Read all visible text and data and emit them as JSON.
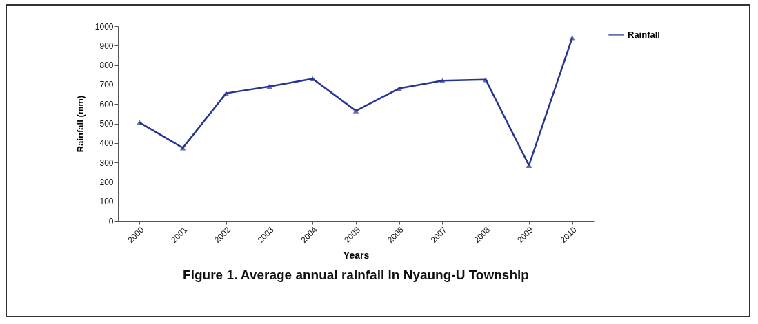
{
  "chart_data": {
    "type": "line",
    "title": "Figure 1. Average annual rainfall in Nyaung-U Township",
    "xlabel": "Years",
    "ylabel": "Rainfall (mm)",
    "categories": [
      "2000",
      "2001",
      "2002",
      "2003",
      "2004",
      "2005",
      "2006",
      "2007",
      "2008",
      "2009",
      "2010"
    ],
    "series": [
      {
        "name": "Rainfall",
        "color": "#26358f",
        "values": [
          505,
          375,
          655,
          690,
          730,
          565,
          680,
          720,
          725,
          285,
          940
        ]
      }
    ],
    "ylim": [
      0,
      1000
    ],
    "yticks": [
      0,
      100,
      200,
      300,
      400,
      500,
      600,
      700,
      800,
      900,
      1000
    ],
    "grid": false,
    "legend": "right",
    "marker": "triangle",
    "line_style": "solid"
  }
}
